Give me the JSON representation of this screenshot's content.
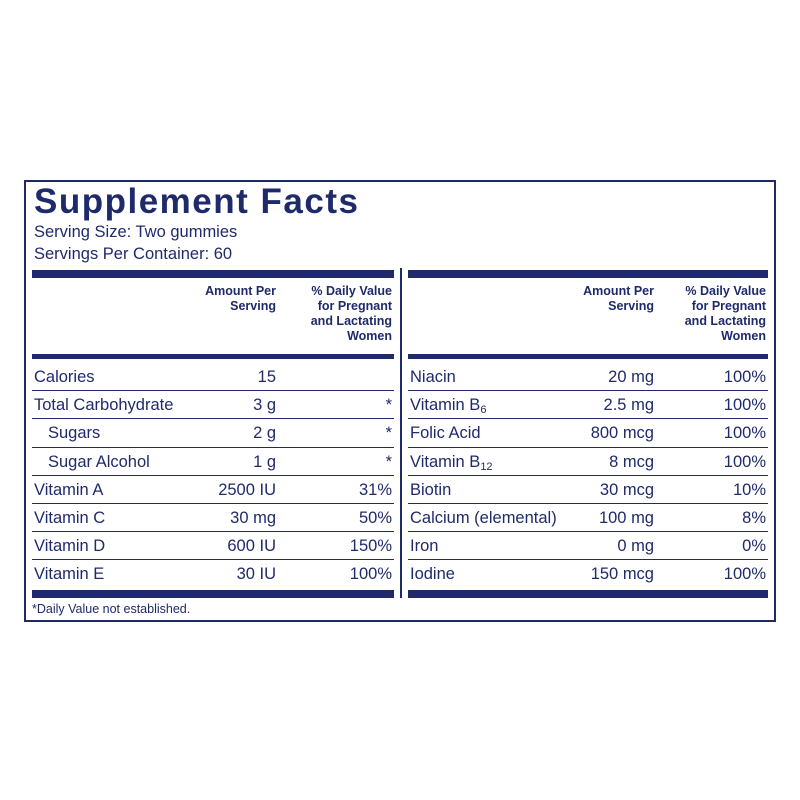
{
  "title": "Supplement Facts",
  "serving_size": "Serving Size: Two gummies",
  "servings_per_container": "Servings Per Container: 60",
  "headers": {
    "amount_line1": "Amount Per",
    "amount_line2": "Serving",
    "dv_line1": "% Daily Value",
    "dv_line2": "for Pregnant",
    "dv_line3": "and Lactating",
    "dv_line4": "Women"
  },
  "left_rows": [
    {
      "name": "Calories",
      "amount": "15",
      "dv": ""
    },
    {
      "name": "Total Carbohydrate",
      "amount": "3 g",
      "dv": "*"
    },
    {
      "name": "Sugars",
      "amount": "2 g",
      "dv": "*"
    },
    {
      "name": "Sugar Alcohol",
      "amount": "1 g",
      "dv": "*"
    },
    {
      "name": "Vitamin A",
      "amount": "2500 IU",
      "dv": "31%"
    },
    {
      "name": "Vitamin C",
      "amount": "30 mg",
      "dv": "50%"
    },
    {
      "name": "Vitamin D",
      "amount": "600 IU",
      "dv": "150%"
    },
    {
      "name": "Vitamin E",
      "amount": "30 IU",
      "dv": "100%"
    }
  ],
  "right_rows": [
    {
      "name": "Niacin",
      "amount": "20 mg",
      "dv": "100%"
    },
    {
      "name": "Vitamin B",
      "sub": "6",
      "amount": "2.5 mg",
      "dv": "100%"
    },
    {
      "name": "Folic Acid",
      "amount": "800 mcg",
      "dv": "100%"
    },
    {
      "name": "Vitamin B",
      "sub": "12",
      "amount": "8 mcg",
      "dv": "100%"
    },
    {
      "name": "Biotin",
      "amount": "30 mcg",
      "dv": "10%"
    },
    {
      "name": "Calcium (elemental)",
      "amount": "100 mg",
      "dv": "8%"
    },
    {
      "name": "Iron",
      "amount": "0 mg",
      "dv": "0%"
    },
    {
      "name": "Iodine",
      "amount": "150 mcg",
      "dv": "100%"
    }
  ],
  "footnote": "*Daily Value not established.",
  "colors": {
    "ink": "#1f2a6b",
    "background": "#ffffff"
  }
}
